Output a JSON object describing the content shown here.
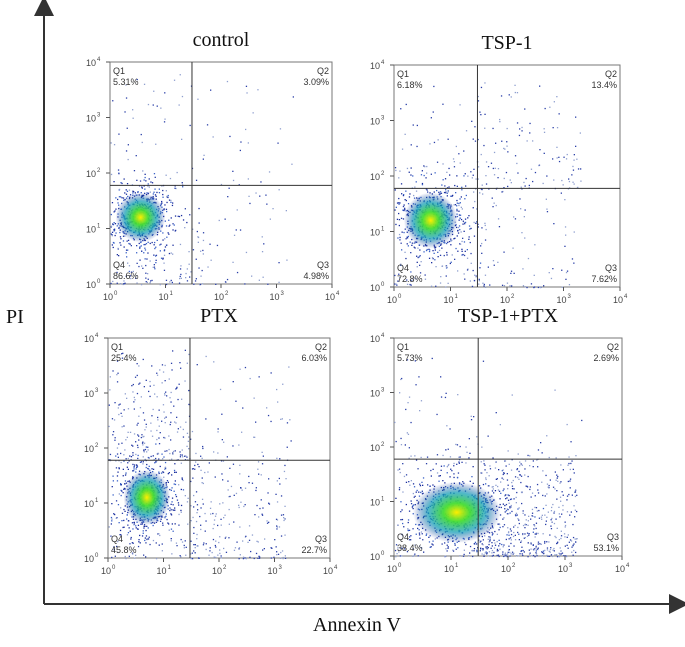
{
  "figure": {
    "x_axis_label": "Annexin V",
    "y_axis_label": "PI",
    "arrow_color": "#333333"
  },
  "chart_data": [
    {
      "type": "scatter",
      "title": "control",
      "x_scale": "log",
      "y_scale": "log",
      "xlim": [
        1,
        10000
      ],
      "ylim": [
        1,
        10000
      ],
      "gate": {
        "x": 30,
        "y": 60
      },
      "quadrants": [
        {
          "id": "Q1",
          "label": "Q1",
          "value": "5.31%"
        },
        {
          "id": "Q2",
          "label": "Q2",
          "value": "3.09%"
        },
        {
          "id": "Q3",
          "label": "Q3",
          "value": "4.98%"
        },
        {
          "id": "Q4",
          "label": "Q4",
          "value": "86.6%"
        }
      ]
    },
    {
      "type": "scatter",
      "title": "TSP-1",
      "x_scale": "log",
      "y_scale": "log",
      "xlim": [
        1,
        10000
      ],
      "ylim": [
        1,
        10000
      ],
      "gate": {
        "x": 30,
        "y": 60
      },
      "quadrants": [
        {
          "id": "Q1",
          "label": "Q1",
          "value": "6.18%"
        },
        {
          "id": "Q2",
          "label": "Q2",
          "value": "13.4%"
        },
        {
          "id": "Q3",
          "label": "Q3",
          "value": "7.62%"
        },
        {
          "id": "Q4",
          "label": "Q4",
          "value": "72.8%"
        }
      ]
    },
    {
      "type": "scatter",
      "title": "PTX",
      "x_scale": "log",
      "y_scale": "log",
      "xlim": [
        1,
        10000
      ],
      "ylim": [
        1,
        10000
      ],
      "gate": {
        "x": 30,
        "y": 60
      },
      "quadrants": [
        {
          "id": "Q1",
          "label": "Q1",
          "value": "25.4%"
        },
        {
          "id": "Q2",
          "label": "Q2",
          "value": "6.03%"
        },
        {
          "id": "Q3",
          "label": "Q3",
          "value": "22.7%"
        },
        {
          "id": "Q4",
          "label": "Q4",
          "value": "45.8%"
        }
      ]
    },
    {
      "type": "scatter",
      "title": "TSP-1+PTX",
      "x_scale": "log",
      "y_scale": "log",
      "xlim": [
        1,
        10000
      ],
      "ylim": [
        1,
        10000
      ],
      "gate": {
        "x": 30,
        "y": 60
      },
      "quadrants": [
        {
          "id": "Q1",
          "label": "Q1",
          "value": "5.73%"
        },
        {
          "id": "Q2",
          "label": "Q2",
          "value": "2.69%"
        },
        {
          "id": "Q3",
          "label": "Q3",
          "value": "53.1%"
        },
        {
          "id": "Q4",
          "label": "Q4",
          "value": "38.4%"
        }
      ]
    }
  ]
}
